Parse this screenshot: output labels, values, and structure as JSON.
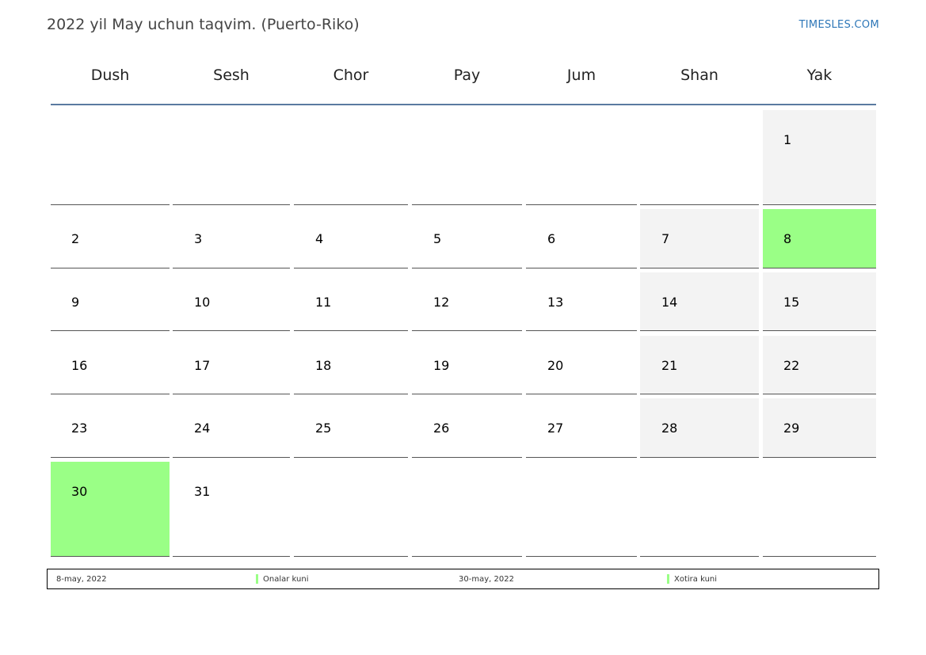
{
  "title": "2022 yil May uchun taqvim. (Puerto-Riko)",
  "site": "TIMESLES.COM",
  "colors": {
    "holiday": "#9aff86",
    "weekend": "#f3f3f3",
    "header_rule": "#5a7aa0",
    "link": "#2e77b8"
  },
  "weekdays": [
    "Dush",
    "Sesh",
    "Chor",
    "Pay",
    "Jum",
    "Shan",
    "Yak"
  ],
  "weeks": [
    [
      {
        "day": "",
        "type": "empty"
      },
      {
        "day": "",
        "type": "empty"
      },
      {
        "day": "",
        "type": "empty"
      },
      {
        "day": "",
        "type": "empty"
      },
      {
        "day": "",
        "type": "empty"
      },
      {
        "day": "",
        "type": "empty"
      },
      {
        "day": "1",
        "type": "weekend"
      }
    ],
    [
      {
        "day": "2",
        "type": "normal"
      },
      {
        "day": "3",
        "type": "normal"
      },
      {
        "day": "4",
        "type": "normal"
      },
      {
        "day": "5",
        "type": "normal"
      },
      {
        "day": "6",
        "type": "normal"
      },
      {
        "day": "7",
        "type": "weekend"
      },
      {
        "day": "8",
        "type": "holiday"
      }
    ],
    [
      {
        "day": "9",
        "type": "normal"
      },
      {
        "day": "10",
        "type": "normal"
      },
      {
        "day": "11",
        "type": "normal"
      },
      {
        "day": "12",
        "type": "normal"
      },
      {
        "day": "13",
        "type": "normal"
      },
      {
        "day": "14",
        "type": "weekend"
      },
      {
        "day": "15",
        "type": "weekend"
      }
    ],
    [
      {
        "day": "16",
        "type": "normal"
      },
      {
        "day": "17",
        "type": "normal"
      },
      {
        "day": "18",
        "type": "normal"
      },
      {
        "day": "19",
        "type": "normal"
      },
      {
        "day": "20",
        "type": "normal"
      },
      {
        "day": "21",
        "type": "weekend"
      },
      {
        "day": "22",
        "type": "weekend"
      }
    ],
    [
      {
        "day": "23",
        "type": "normal"
      },
      {
        "day": "24",
        "type": "normal"
      },
      {
        "day": "25",
        "type": "normal"
      },
      {
        "day": "26",
        "type": "normal"
      },
      {
        "day": "27",
        "type": "normal"
      },
      {
        "day": "28",
        "type": "weekend"
      },
      {
        "day": "29",
        "type": "weekend"
      }
    ],
    [
      {
        "day": "30",
        "type": "holiday"
      },
      {
        "day": "31",
        "type": "normal"
      },
      {
        "day": "",
        "type": "empty"
      },
      {
        "day": "",
        "type": "empty"
      },
      {
        "day": "",
        "type": "empty"
      },
      {
        "day": "",
        "type": "empty"
      },
      {
        "day": "",
        "type": "empty"
      }
    ]
  ],
  "legend": [
    {
      "date": "8-may, 2022",
      "name": "Onalar kuni",
      "color": "#9aff86"
    },
    {
      "date": "30-may, 2022",
      "name": "Xotira kuni",
      "color": "#9aff86"
    }
  ]
}
